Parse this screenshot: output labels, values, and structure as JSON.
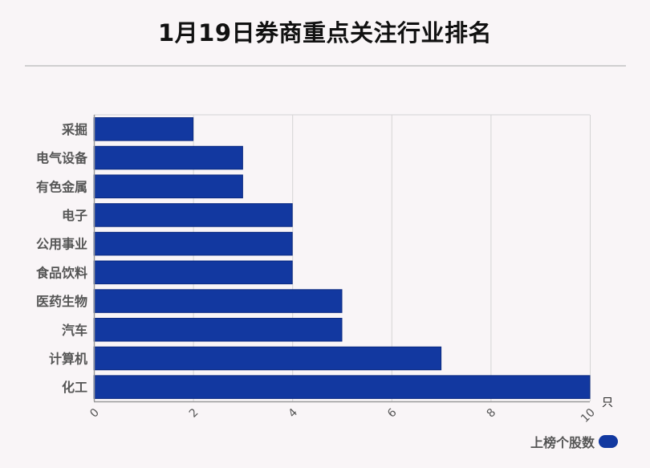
{
  "title": "1月19日券商重点关注行业排名",
  "unit": "只",
  "legend_label": "上榜个股数",
  "colors": {
    "bar": "#1238a0",
    "bar_stroke": "#0b2a80",
    "grid": "#d4d4d4",
    "axis": "#999999",
    "category_text": "#555555",
    "tick_text": "#555555"
  },
  "chart_data": {
    "type": "bar",
    "orientation": "horizontal",
    "categories": [
      "采掘",
      "电气设备",
      "有色金属",
      "电子",
      "公用事业",
      "食品饮料",
      "医药生物",
      "汽车",
      "计算机",
      "化工"
    ],
    "series": [
      {
        "name": "上榜个股数",
        "values": [
          2,
          3,
          3,
          4,
          4,
          4,
          5,
          5,
          7,
          10
        ]
      }
    ],
    "xlim": [
      0,
      10
    ],
    "xticks": [
      0,
      2,
      4,
      6,
      8,
      10
    ],
    "x_unit": "只",
    "grid": true,
    "legend_position": "bottom-right"
  }
}
